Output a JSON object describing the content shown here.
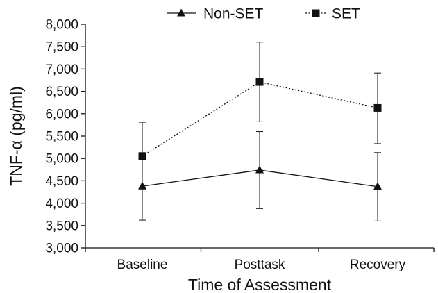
{
  "chart_data": {
    "type": "line",
    "categories": [
      "Baseline",
      "Posttask",
      "Recovery"
    ],
    "xlabel": "Time of Assessment",
    "ylabel": "TNF-α (pg/ml)",
    "ylim": [
      3000,
      8000
    ],
    "yticks": [
      3000,
      3500,
      4000,
      4500,
      5000,
      5500,
      6000,
      6500,
      7000,
      7500,
      8000
    ],
    "ytick_labels": [
      "3,000",
      "3,500",
      "4,000",
      "4,500",
      "5,000",
      "5,500",
      "6,000",
      "6,500",
      "7,000",
      "7,500",
      "8,000"
    ],
    "grid": false,
    "legend_position": "top",
    "series": [
      {
        "name": "Non-SET",
        "marker": "triangle",
        "line_style": "solid",
        "values": [
          4380,
          4740,
          4370
        ],
        "error_low": [
          3620,
          3880,
          3600
        ],
        "error_high": [
          5130,
          5600,
          5130
        ]
      },
      {
        "name": "SET",
        "marker": "square",
        "line_style": "dotted",
        "values": [
          5050,
          6710,
          6130
        ],
        "error_low": [
          4300,
          5820,
          5330
        ],
        "error_high": [
          5810,
          7600,
          6910
        ]
      }
    ]
  }
}
